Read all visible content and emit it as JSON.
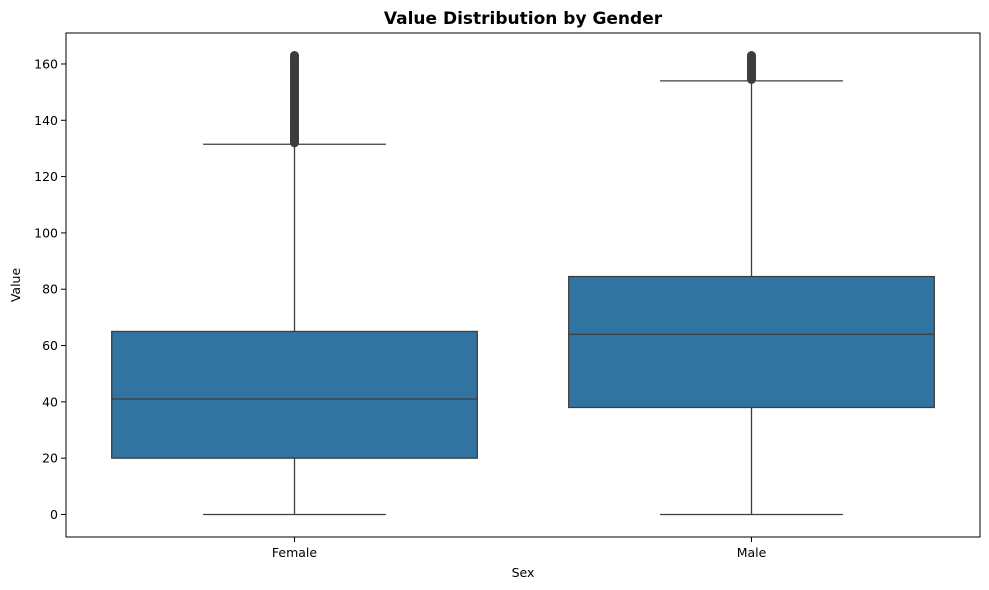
{
  "chart_data": {
    "type": "box",
    "title": "Value Distribution by Gender",
    "xlabel": "Sex",
    "ylabel": "Value",
    "ylim": [
      -8,
      171
    ],
    "yticks": [
      "0",
      "20",
      "40",
      "60",
      "80",
      "100",
      "120",
      "140",
      "160"
    ],
    "grid": false,
    "categories": [
      "Female",
      "Male"
    ],
    "boxes": [
      {
        "category": "Female",
        "whisker_low": 0,
        "q1": 20,
        "median": 41,
        "q3": 65,
        "whisker_high": 131.5,
        "outlier_range": [
          132,
          163
        ]
      },
      {
        "category": "Male",
        "whisker_low": 0,
        "q1": 38,
        "median": 64,
        "q3": 84.5,
        "whisker_high": 154,
        "outlier_range": [
          154.5,
          163
        ]
      }
    ],
    "colors": {
      "box_fill": "#3274a1",
      "line": "#3d3d3d",
      "outlier": "#3d3d3d"
    }
  }
}
